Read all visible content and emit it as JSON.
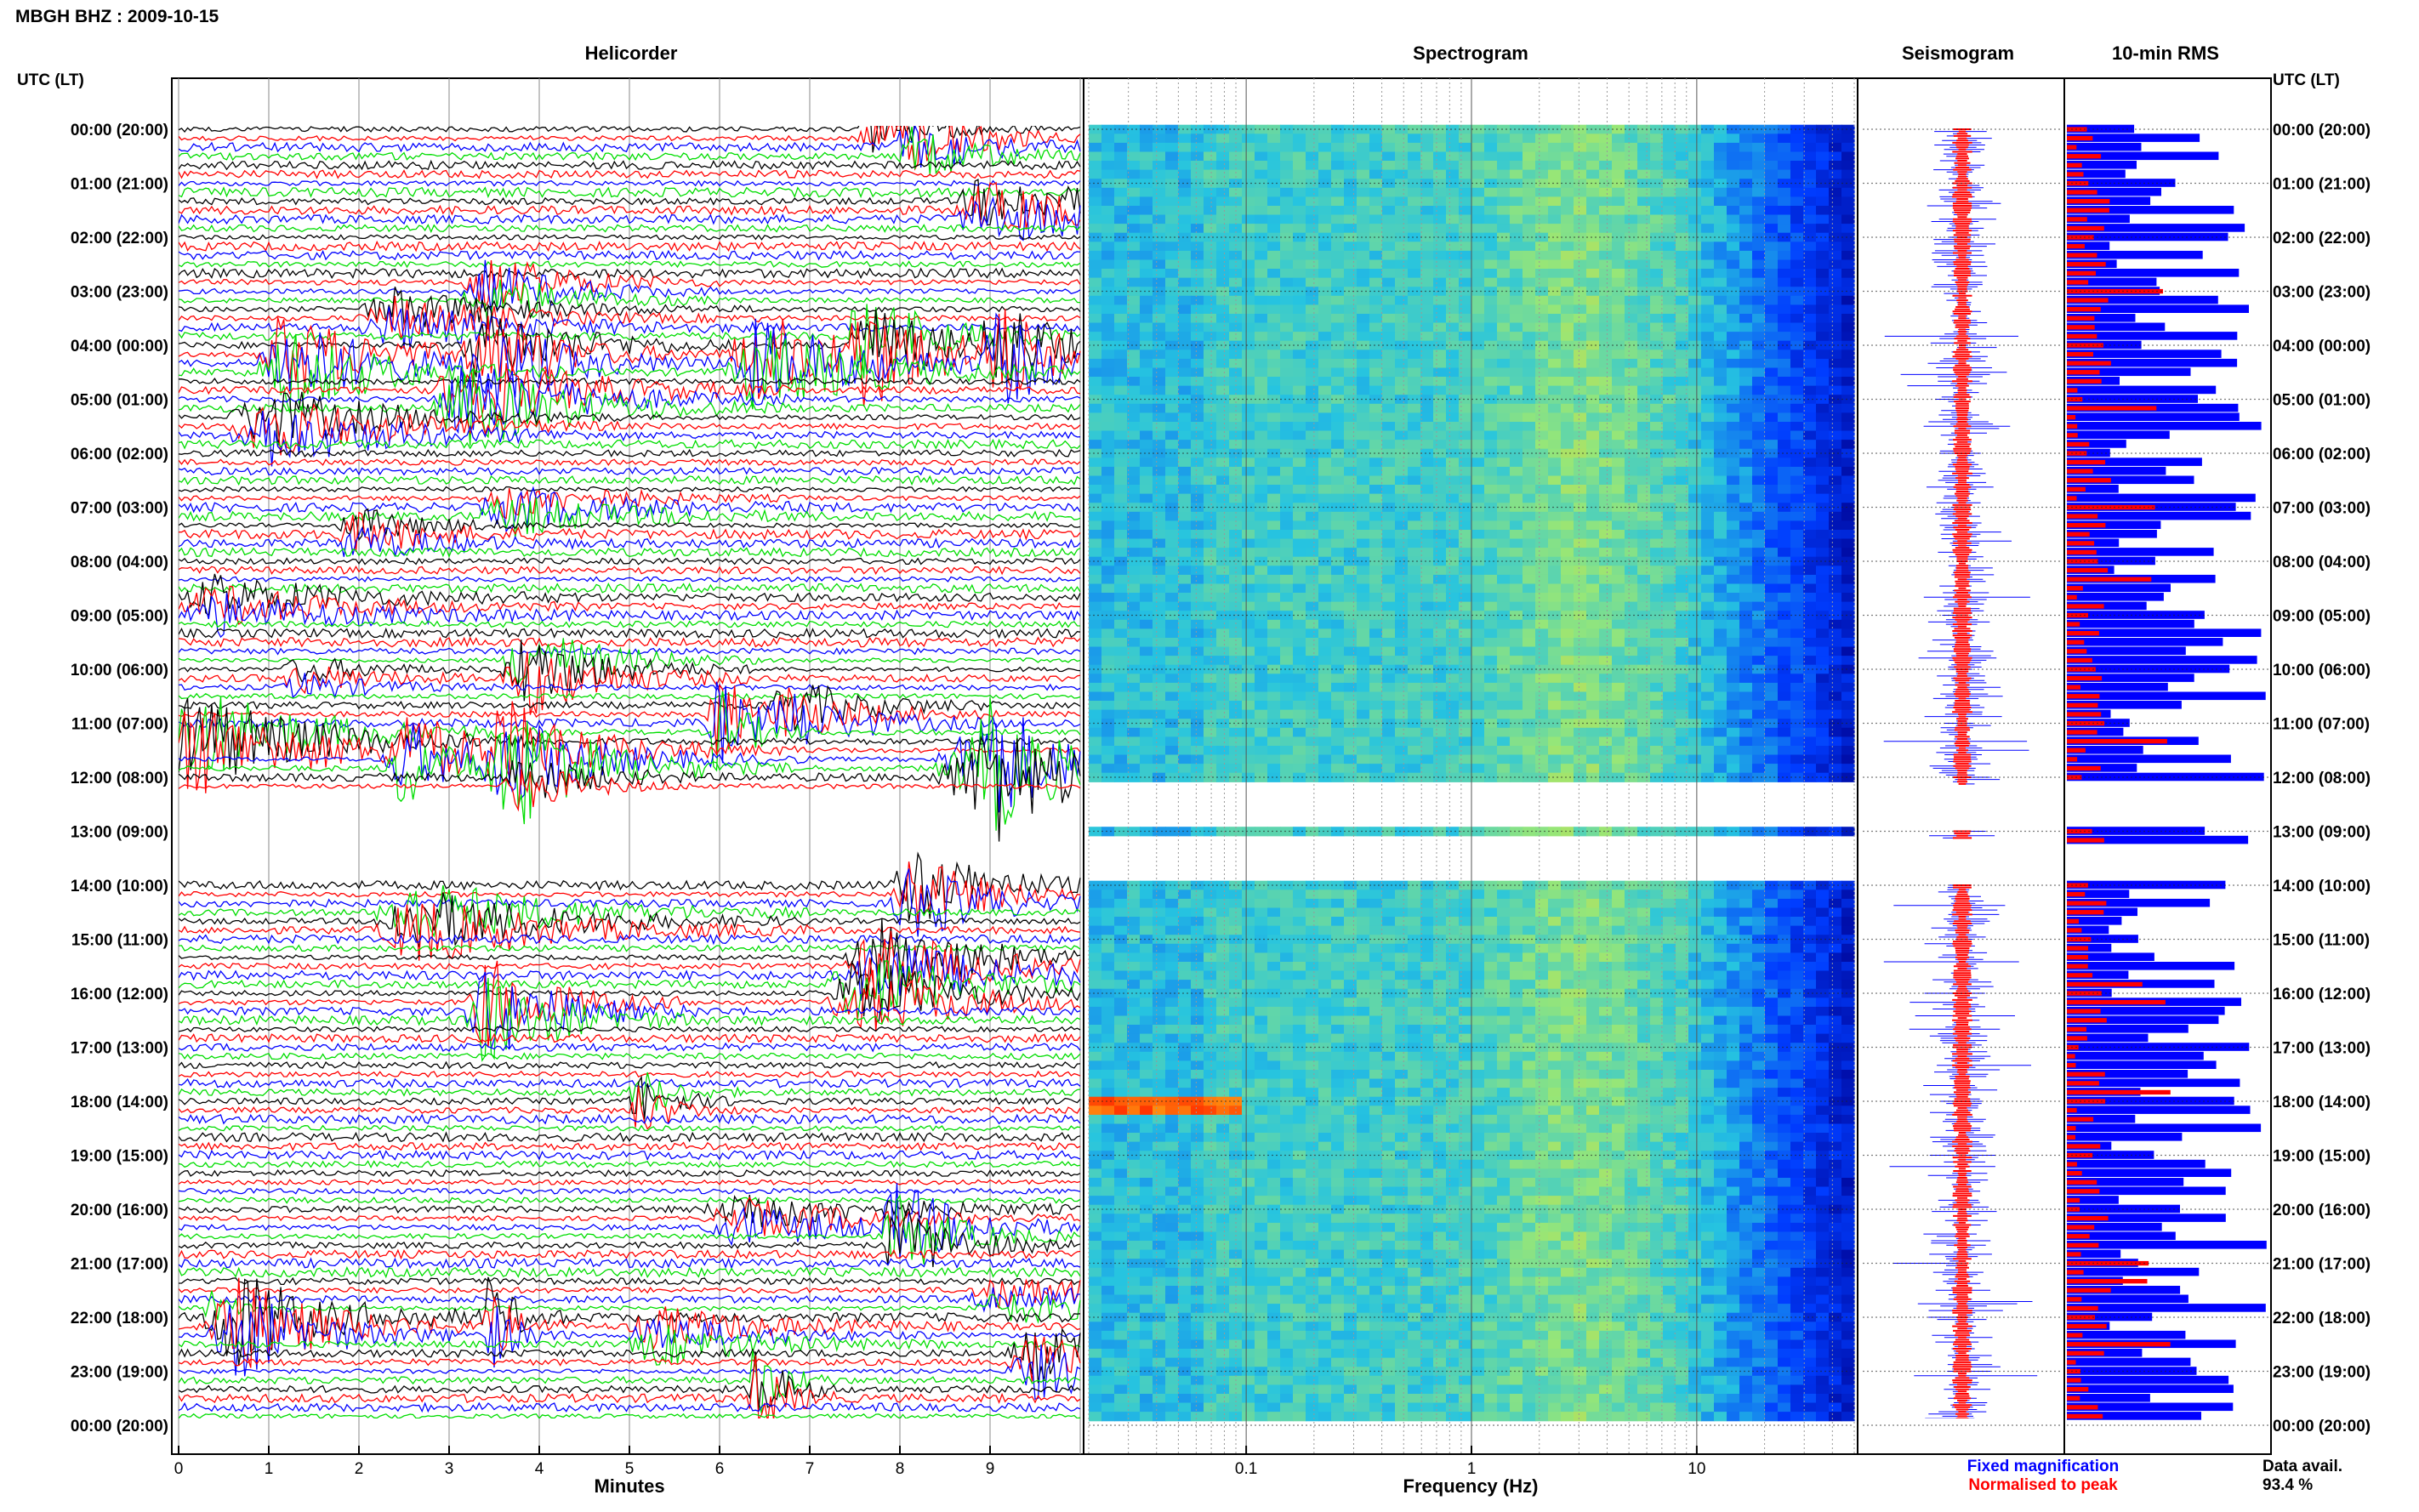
{
  "header": {
    "station_title": "MBGH BHZ : 2009-10-15",
    "time_label_left": "UTC (LT)",
    "time_label_right": "UTC (LT)"
  },
  "panels": {
    "helicorder_title": "Helicorder",
    "spectrogram_title": "Spectrogram",
    "seismogram_title": "Seismogram",
    "rms_title": "10-min RMS"
  },
  "footer": {
    "minutes_label": "Minutes",
    "frequency_label": "Frequency (Hz)",
    "legend_fixed": "Fixed magnification",
    "legend_normalised": "Normalised to peak",
    "data_avail_label": "Data avail.",
    "data_avail_value": "93.4 %"
  },
  "colors": {
    "trace_cycle": [
      "#000000",
      "#ff0000",
      "#0000ff",
      "#00dd00"
    ],
    "fixed_magnification": "#0000ff",
    "normalised_to_peak": "#ff0000",
    "spectrogram_low": "#00008f",
    "spectrogram_mid": "#26c4e0",
    "spectrogram_high": "#ffd21a",
    "spectrogram_peak": "#ff3300"
  },
  "chart_data": [
    {
      "type": "line",
      "name": "helicorder",
      "title": "Helicorder",
      "xlabel": "Minutes",
      "x_ticks": [
        0,
        1,
        2,
        3,
        4,
        5,
        6,
        7,
        8,
        9
      ],
      "xlim": [
        0,
        10
      ],
      "grid": true,
      "row_interval_minutes": 10,
      "gap_utc": [
        "12:10",
        "14:00"
      ],
      "y_tick_labels": [
        "00:00 (20:00)",
        "01:00 (21:00)",
        "02:00 (22:00)",
        "03:00 (23:00)",
        "04:00 (00:00)",
        "05:00 (01:00)",
        "06:00 (02:00)",
        "07:00 (03:00)",
        "08:00 (04:00)",
        "09:00 (05:00)",
        "10:00 (06:00)",
        "11:00 (07:00)",
        "12:00 (08:00)",
        "13:00 (09:00)",
        "14:00 (10:00)",
        "15:00 (11:00)",
        "16:00 (12:00)",
        "17:00 (13:00)",
        "18:00 (14:00)",
        "19:00 (15:00)",
        "20:00 (16:00)",
        "21:00 (17:00)",
        "22:00 (18:00)",
        "23:00 (19:00)",
        "00:00 (20:00)"
      ]
    },
    {
      "type": "heatmap",
      "name": "spectrogram",
      "title": "Spectrogram",
      "xlabel": "Frequency (Hz)",
      "x_scale": "log",
      "xlim": [
        0.02,
        50
      ],
      "x_ticks": [
        0.1,
        1,
        10
      ],
      "x_tick_labels": [
        "0.1",
        "1",
        "10"
      ],
      "grid": true,
      "note_peak": "18:00 UTC near 0.05 Hz"
    },
    {
      "type": "line",
      "name": "seismogram",
      "title": "Seismogram",
      "series": [
        {
          "name": "Fixed magnification",
          "color": "#0000ff"
        },
        {
          "name": "Normalised to peak",
          "color": "#ff0000"
        }
      ]
    },
    {
      "type": "bar",
      "name": "rms",
      "title": "10-min RMS",
      "orientation": "horizontal",
      "series": [
        {
          "name": "Fixed magnification",
          "color": "#0000ff"
        },
        {
          "name": "Normalised to peak",
          "color": "#ff0000"
        }
      ],
      "row_interval_minutes": 10
    }
  ]
}
